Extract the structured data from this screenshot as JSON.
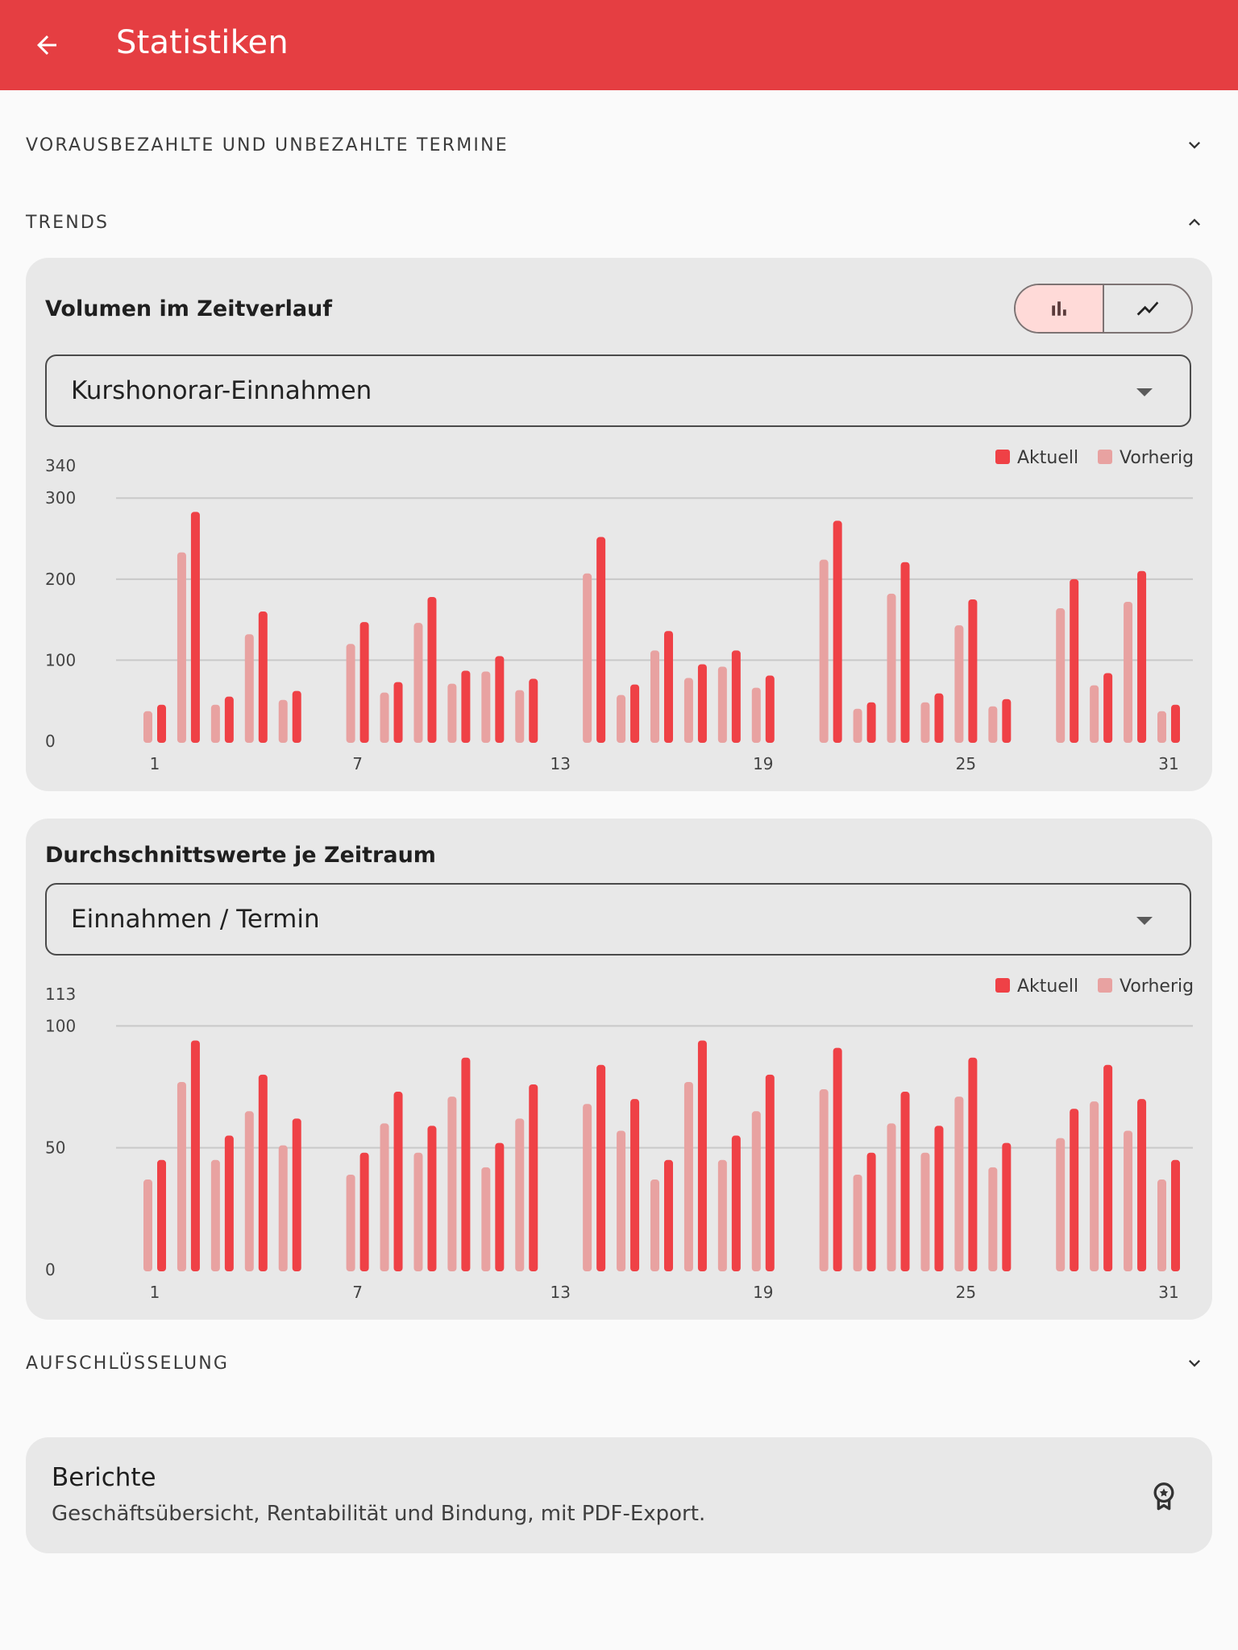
{
  "appbar": {
    "title": "Statistiken",
    "back_icon": "arrow-back-icon"
  },
  "sections": {
    "prepaid": {
      "label": "VORAUSBEZAHLTE UND UNBEZAHLTE TERMINE"
    },
    "trends": {
      "label": "TRENDS"
    },
    "breakdown": {
      "label": "AUFSCHLÜSSELUNG"
    }
  },
  "volume_card": {
    "title": "Volumen im Zeitverlauf",
    "toggle": [
      {
        "icon": "bar-chart-icon",
        "active": true
      },
      {
        "icon": "line-chart-icon",
        "active": false
      }
    ],
    "dropdown_value": "Kurshonorar-Einnahmen"
  },
  "average_card": {
    "title": "Durchschnittswerte je Zeitraum",
    "dropdown_value": "Einnahmen / Termin"
  },
  "report": {
    "title": "Berichte",
    "subtitle": "Geschäftsübersicht, Rentabilität und Bindung, mit PDF-Export.",
    "icon": "premium-badge-icon"
  },
  "colors": {
    "primary": "#e53e42",
    "current": "#ef4146",
    "previous": "#e8a2a1"
  },
  "chart_data": [
    {
      "type": "bar",
      "title": "Volumen im Zeitverlauf",
      "legend": [
        "Aktuell",
        "Vorherig"
      ],
      "legend_position": "top-right",
      "y_ticks": [
        0,
        100,
        200,
        300,
        340
      ],
      "ylim": [
        0,
        340
      ],
      "x_ticks": [
        "1",
        "7",
        "13",
        "19",
        "25",
        "31"
      ],
      "x": [
        1,
        2,
        3,
        4,
        5,
        6,
        7,
        8,
        9,
        10,
        11,
        12,
        13,
        14,
        15,
        16,
        17,
        18,
        19,
        20,
        21,
        22,
        23,
        24,
        25,
        26,
        27,
        28,
        29,
        30,
        31
      ],
      "series": [
        {
          "name": "Aktuell",
          "values": [
            45,
            283,
            55,
            160,
            62,
            null,
            147,
            73,
            178,
            87,
            105,
            77,
            null,
            252,
            70,
            136,
            95,
            112,
            81,
            null,
            272,
            48,
            221,
            59,
            175,
            52,
            null,
            200,
            84,
            210,
            45
          ]
        },
        {
          "name": "Vorherig",
          "values": [
            37,
            233,
            45,
            132,
            51,
            null,
            120,
            60,
            146,
            71,
            86,
            63,
            null,
            207,
            57,
            112,
            78,
            92,
            66,
            null,
            224,
            40,
            182,
            48,
            143,
            43,
            null,
            164,
            69,
            172,
            37
          ]
        }
      ],
      "grid": true
    },
    {
      "type": "bar",
      "title": "Durchschnittswerte je Zeitraum",
      "legend": [
        "Aktuell",
        "Vorherig"
      ],
      "legend_position": "top-right",
      "y_ticks": [
        0,
        50,
        100,
        113
      ],
      "ylim": [
        0,
        113
      ],
      "x_ticks": [
        "1",
        "7",
        "13",
        "19",
        "25",
        "31"
      ],
      "x": [
        1,
        2,
        3,
        4,
        5,
        6,
        7,
        8,
        9,
        10,
        11,
        12,
        13,
        14,
        15,
        16,
        17,
        18,
        19,
        20,
        21,
        22,
        23,
        24,
        25,
        26,
        27,
        28,
        29,
        30,
        31
      ],
      "series": [
        {
          "name": "Aktuell",
          "values": [
            45,
            94,
            55,
            80,
            62,
            null,
            48,
            73,
            59,
            87,
            52,
            76,
            null,
            84,
            70,
            45,
            94,
            55,
            80,
            null,
            91,
            48,
            73,
            59,
            87,
            52,
            null,
            66,
            84,
            70,
            45
          ]
        },
        {
          "name": "Vorherig",
          "values": [
            37,
            77,
            45,
            65,
            51,
            null,
            39,
            60,
            48,
            71,
            42,
            62,
            null,
            68,
            57,
            37,
            77,
            45,
            65,
            null,
            74,
            39,
            60,
            48,
            71,
            42,
            null,
            54,
            69,
            57,
            37
          ]
        }
      ],
      "grid": true
    }
  ]
}
